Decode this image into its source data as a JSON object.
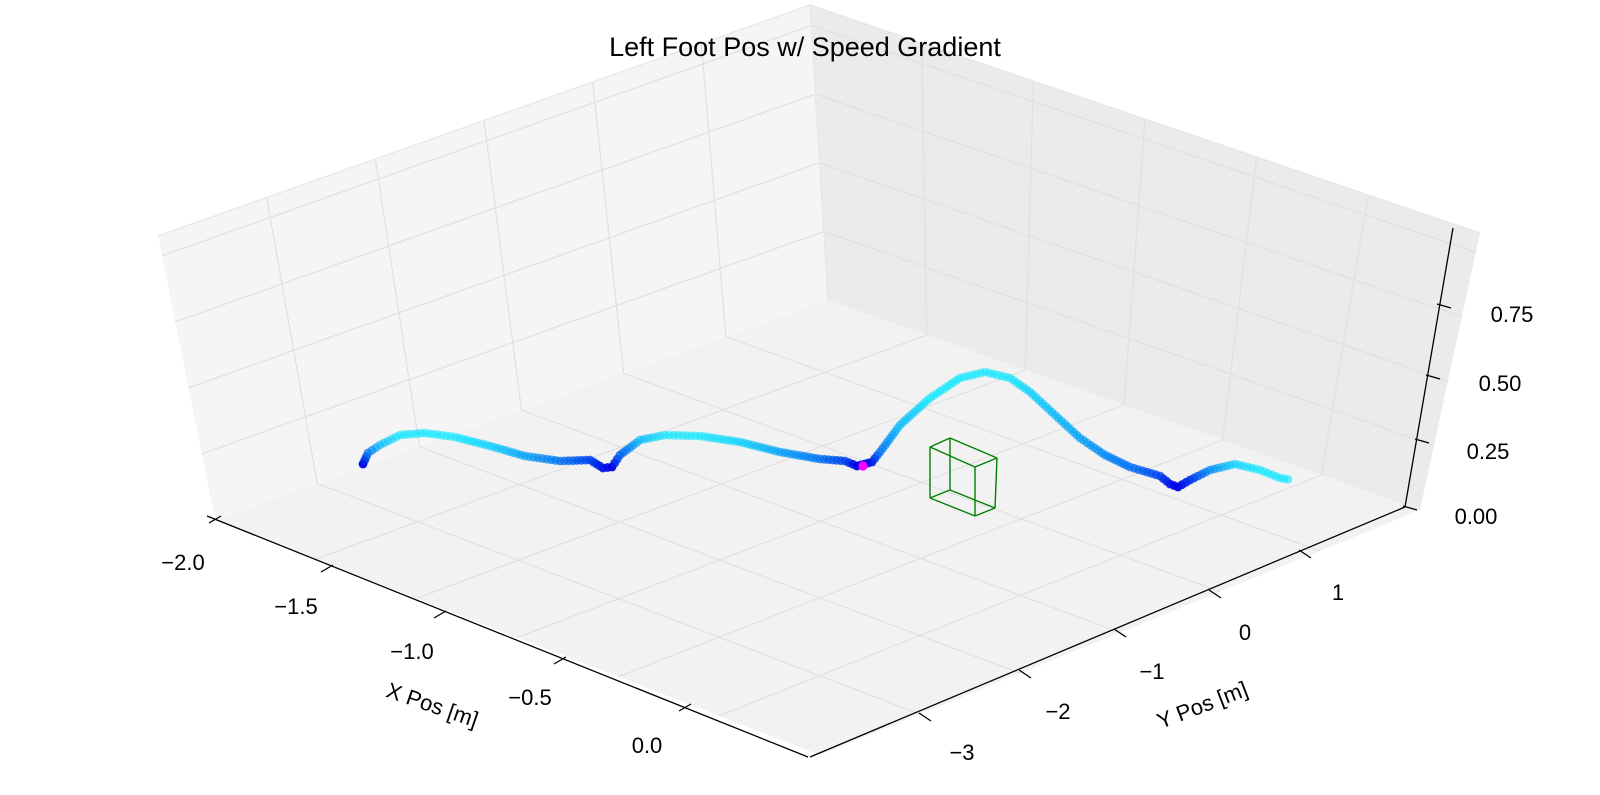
{
  "chart_data": {
    "type": "scatter",
    "projection": "3d",
    "title": "Left Foot Pos w/ Speed Gradient",
    "xlabel": "X Pos [m]",
    "ylabel": "Y Pos [m]",
    "zlabel": "",
    "x_ticks": [
      "−2.0",
      "−1.5",
      "−1.0",
      "−0.5",
      "0.0"
    ],
    "y_ticks": [
      "−3",
      "−2",
      "−1",
      "0",
      "1"
    ],
    "z_ticks": [
      "0.00",
      "0.25",
      "0.50",
      "0.75"
    ],
    "grid": true,
    "colormap": [
      "#0000e6",
      "#00e5ff"
    ],
    "highlight_color": "#ff00ff",
    "obstacle_color": "#008000",
    "series": [
      {
        "marker": "circle",
        "color_by": "speed",
        "points_note": "trajectory shown as speed-colored markers"
      }
    ]
  }
}
